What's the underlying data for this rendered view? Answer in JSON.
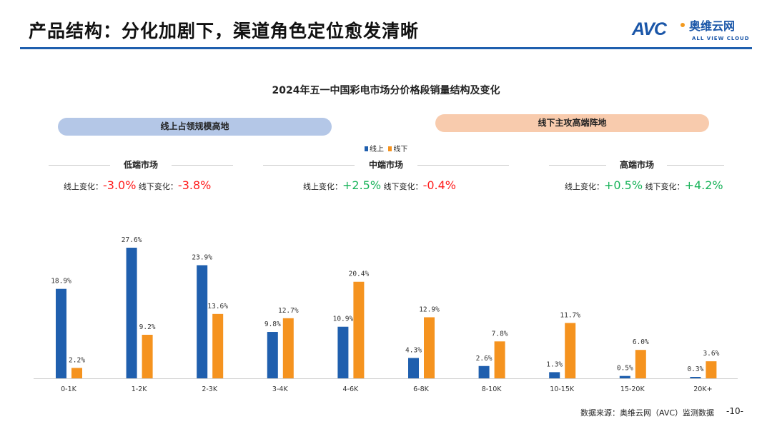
{
  "header": {
    "title": "产品结构：分化加剧下，渠道角色定位愈发清晰",
    "logo_text": "AVC 奥维云网 ALL VIEW CLOUD"
  },
  "callouts": {
    "online": "线上占领规模高地",
    "offline": "线下主攻高端阵地"
  },
  "segments": [
    {
      "label": "低端市场",
      "online_label": "线上变化：",
      "online_change": "-3.0%",
      "offline_label": "线下变化：",
      "offline_change": "-3.8%"
    },
    {
      "label": "中端市场",
      "online_label": "线上变化：",
      "online_change": "+2.5%",
      "offline_label": "线下变化：",
      "offline_change": "-0.4%"
    },
    {
      "label": "高端市场",
      "online_label": "线上变化：",
      "online_change": "+0.5%",
      "offline_label": "线下变化：",
      "offline_change": "+4.2%"
    }
  ],
  "colors": {
    "online": "#1f5fae",
    "offline": "#f5931f",
    "negative": "#ff1c1c",
    "positive": "#19b35a"
  },
  "chart_data": {
    "type": "bar",
    "title": "2024年五一中国彩电市场分价格段销量结构及变化",
    "categories": [
      "0-1K",
      "1-2K",
      "2-3K",
      "3-4K",
      "4-6K",
      "6-8K",
      "8-10K",
      "10-15K",
      "15-20K",
      "20K+"
    ],
    "series": [
      {
        "name": "线上",
        "values": [
          18.9,
          27.6,
          23.9,
          9.8,
          10.9,
          4.3,
          2.6,
          1.3,
          0.5,
          0.3
        ]
      },
      {
        "name": "线下",
        "values": [
          2.2,
          9.2,
          13.6,
          12.7,
          20.4,
          12.9,
          7.8,
          11.7,
          6.0,
          3.6
        ]
      }
    ],
    "unit": "%",
    "ylim": [
      0,
      30
    ],
    "legend": "top-center",
    "grid": false
  },
  "footer": {
    "source": "数据来源：奥维云网（AVC）监测数据",
    "page": "-10-"
  }
}
